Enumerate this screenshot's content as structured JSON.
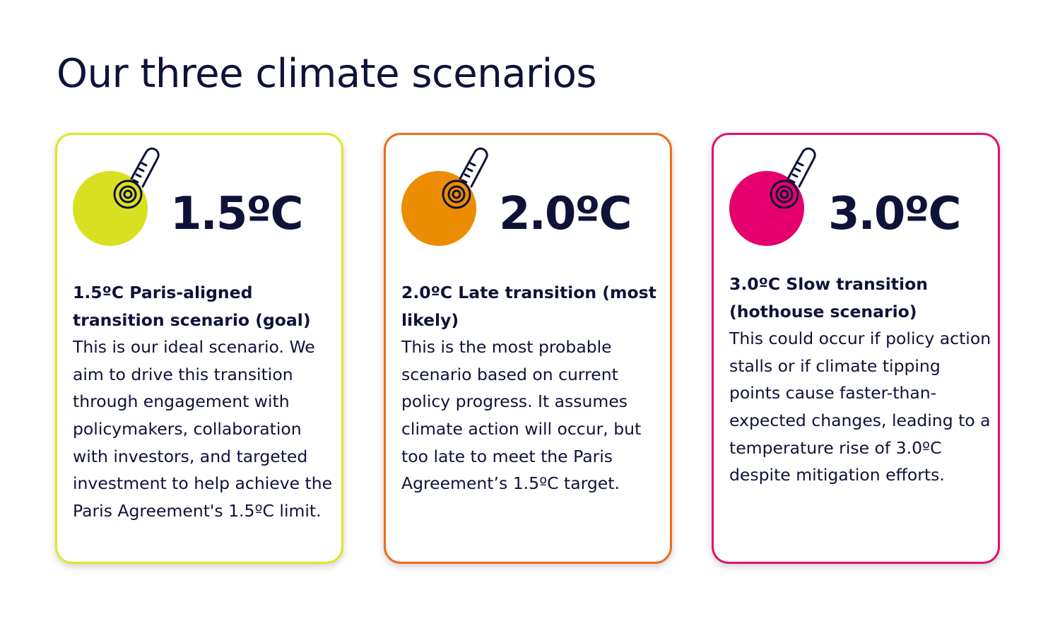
{
  "page": {
    "title": "Our three climate scenarios"
  },
  "scenarios": [
    {
      "temperature": "1.5ºC",
      "heading": "1.5ºC Paris-aligned transition scenario (goal)",
      "body": "This is our ideal scenario. We aim to drive this transition through engagement with policymakers, collaboration with investors, and targeted investment to help achieve the Paris Agreement's 1.5ºC limit.",
      "accent_color": "#d9e021",
      "border_color": "#dcea1f",
      "icon": "thermometer-icon"
    },
    {
      "temperature": "2.0ºC",
      "heading": "2.0ºC Late transition (most likely)",
      "body": "This is the most probable scenario based on current policy progress. It assumes climate action will occur, but too late to meet the Paris Agreement’s 1.5ºC target.",
      "accent_color": "#ec8c00",
      "border_color": "#ef6a1c",
      "icon": "thermometer-icon"
    },
    {
      "temperature": "3.0ºC",
      "heading": "3.0ºC Slow transition (hothouse scenario)",
      "body": "This could occur if policy action stalls or if climate tipping points cause faster-than-expected changes, leading to a temperature rise of 3.0ºC despite mitigation efforts.",
      "accent_color": "#e5006e",
      "border_color": "#e0136b",
      "icon": "thermometer-icon"
    }
  ]
}
